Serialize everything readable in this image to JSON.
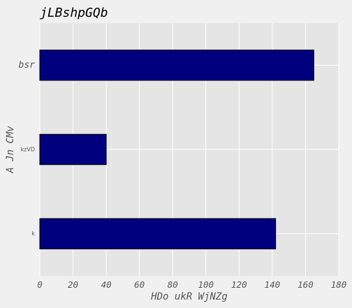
{
  "chart_data": {
    "type": "bar",
    "orientation": "horizontal",
    "title": "jLBshpGQb",
    "xlabel": "HDo ukR WjNZg",
    "ylabel": "A Jn CMv",
    "categories": [
      "k",
      "kzVD",
      "bsr"
    ],
    "values": [
      142,
      40,
      165
    ],
    "xlim": [
      0,
      180
    ],
    "xticks": [
      0,
      20,
      40,
      60,
      80,
      100,
      120,
      140,
      160,
      180
    ],
    "grid": true,
    "bar_color": "#00007f",
    "bar_edge_color": "#000000",
    "background_color": "#e5e5e5",
    "figure_color": "#f0f0f0",
    "grid_color": "#ffffff"
  }
}
